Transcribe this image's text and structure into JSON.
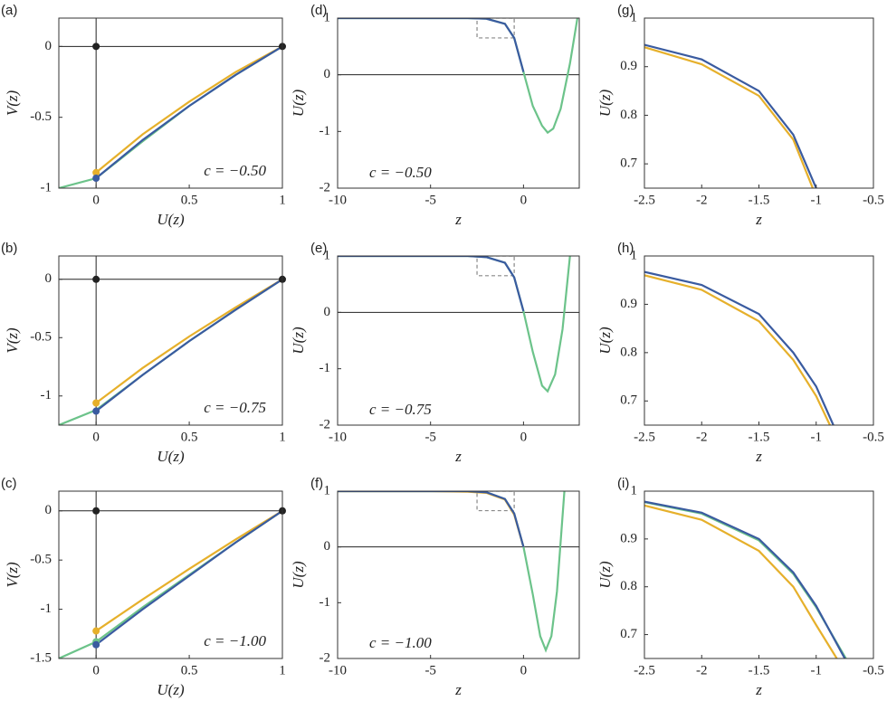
{
  "chart_data": [
    {
      "type": "line",
      "label": "(a)",
      "xlabel": "U(z)",
      "ylabel": "V(z)",
      "annotation": "c = −0.50",
      "xlim": [
        -0.2,
        1
      ],
      "ylim": [
        -1,
        0.2
      ],
      "xticks": [
        0,
        0.5,
        1
      ],
      "yticks": [
        -1,
        -0.5,
        0
      ],
      "zero_lines": [
        "x",
        "y"
      ],
      "series": [
        {
          "color": "#6cc38a",
          "x": [
            -0.2,
            0,
            0.25,
            0.5,
            0.75,
            1
          ],
          "values": [
            -1.0,
            -0.93,
            -0.67,
            -0.42,
            -0.2,
            0
          ]
        },
        {
          "color": "#e6b02b",
          "x": [
            0,
            0.25,
            0.5,
            0.75,
            1
          ],
          "values": [
            -0.89,
            -0.62,
            -0.39,
            -0.18,
            0
          ]
        },
        {
          "color": "#3a5ba0",
          "x": [
            0,
            0.25,
            0.5,
            0.75,
            1
          ],
          "values": [
            -0.93,
            -0.66,
            -0.42,
            -0.2,
            0
          ]
        },
        {
          "color": "#e6b02b",
          "marker": true,
          "x": [
            0
          ],
          "values": [
            -0.89
          ]
        },
        {
          "color": "#3a5ba0",
          "marker": true,
          "x": [
            0
          ],
          "values": [
            -0.93
          ]
        },
        {
          "color": "#222222",
          "marker": true,
          "x": [
            0,
            1
          ],
          "values": [
            0,
            0
          ]
        }
      ]
    },
    {
      "type": "line",
      "label": "(b)",
      "xlabel": "U(z)",
      "ylabel": "V(z)",
      "annotation": "c = −0.75",
      "xlim": [
        -0.2,
        1
      ],
      "ylim": [
        -1.25,
        0.2
      ],
      "xticks": [
        0,
        0.5,
        1
      ],
      "yticks": [
        -1,
        -0.5,
        0
      ],
      "zero_lines": [
        "x",
        "y"
      ],
      "series": [
        {
          "color": "#6cc38a",
          "x": [
            -0.2,
            0,
            0.25,
            0.5,
            0.75,
            1
          ],
          "values": [
            -1.25,
            -1.12,
            -0.82,
            -0.53,
            -0.26,
            0
          ]
        },
        {
          "color": "#e6b02b",
          "x": [
            0,
            0.25,
            0.5,
            0.75,
            1
          ],
          "values": [
            -1.06,
            -0.76,
            -0.49,
            -0.24,
            0
          ]
        },
        {
          "color": "#3a5ba0",
          "x": [
            0,
            0.25,
            0.5,
            0.75,
            1
          ],
          "values": [
            -1.13,
            -0.82,
            -0.53,
            -0.26,
            0
          ]
        },
        {
          "color": "#e6b02b",
          "marker": true,
          "x": [
            0
          ],
          "values": [
            -1.06
          ]
        },
        {
          "color": "#3a5ba0",
          "marker": true,
          "x": [
            0
          ],
          "values": [
            -1.13
          ]
        },
        {
          "color": "#222222",
          "marker": true,
          "x": [
            0,
            1
          ],
          "values": [
            0,
            0
          ]
        }
      ]
    },
    {
      "type": "line",
      "label": "(c)",
      "xlabel": "U(z)",
      "ylabel": "V(z)",
      "annotation": "c = −1.00",
      "xlim": [
        -0.2,
        1
      ],
      "ylim": [
        -1.5,
        0.2
      ],
      "xticks": [
        0,
        0.5,
        1
      ],
      "yticks": [
        -1.5,
        -1,
        -0.5,
        0
      ],
      "zero_lines": [
        "x",
        "y"
      ],
      "series": [
        {
          "color": "#6cc38a",
          "x": [
            -0.2,
            0,
            0.25,
            0.5,
            0.75,
            1
          ],
          "values": [
            -1.5,
            -1.33,
            -0.98,
            -0.65,
            -0.32,
            0
          ]
        },
        {
          "color": "#e6b02b",
          "x": [
            0,
            0.25,
            0.5,
            0.75,
            1
          ],
          "values": [
            -1.22,
            -0.9,
            -0.59,
            -0.29,
            0
          ]
        },
        {
          "color": "#3a5ba0",
          "x": [
            0,
            0.25,
            0.5,
            0.75,
            1
          ],
          "values": [
            -1.36,
            -1.0,
            -0.66,
            -0.32,
            0
          ]
        },
        {
          "color": "#e6b02b",
          "marker": true,
          "x": [
            0
          ],
          "values": [
            -1.22
          ]
        },
        {
          "color": "#6cc38a",
          "marker": true,
          "x": [
            0
          ],
          "values": [
            -1.33
          ]
        },
        {
          "color": "#3a5ba0",
          "marker": true,
          "x": [
            0
          ],
          "values": [
            -1.36
          ]
        },
        {
          "color": "#222222",
          "marker": true,
          "x": [
            0,
            1
          ],
          "values": [
            0,
            0
          ]
        }
      ]
    },
    {
      "type": "line",
      "label": "(d)",
      "xlabel": "z",
      "ylabel": "U(z)",
      "annotation": "c = −0.50",
      "xlim": [
        -10,
        3
      ],
      "ylim": [
        -2,
        1
      ],
      "xticks": [
        -10,
        -5,
        0
      ],
      "yticks": [
        -2,
        -1,
        0,
        1
      ],
      "zero_lines": [
        "y"
      ],
      "zoom_box": {
        "x": [
          -2.5,
          -0.5
        ],
        "y": [
          0.65,
          1
        ]
      },
      "series": [
        {
          "color": "#6cc38a",
          "x": [
            -10,
            -5,
            -3,
            -2,
            -1,
            -0.5,
            0,
            0.5,
            1,
            1.3,
            1.6,
            2,
            2.5,
            2.9
          ],
          "values": [
            1,
            1,
            1,
            0.99,
            0.9,
            0.65,
            0.05,
            -0.55,
            -0.9,
            -1.02,
            -0.95,
            -0.6,
            0.2,
            1
          ]
        },
        {
          "color": "#3a5ba0",
          "x": [
            -10,
            -5,
            -3,
            -2,
            -1,
            -0.5,
            0
          ],
          "values": [
            1,
            1,
            1,
            0.99,
            0.9,
            0.65,
            0.05
          ]
        }
      ]
    },
    {
      "type": "line",
      "label": "(e)",
      "xlabel": "z",
      "ylabel": "U(z)",
      "annotation": "c = −0.75",
      "xlim": [
        -10,
        3
      ],
      "ylim": [
        -2,
        1
      ],
      "xticks": [
        -10,
        -5,
        0
      ],
      "yticks": [
        -2,
        -1,
        0,
        1
      ],
      "zero_lines": [
        "y"
      ],
      "zoom_box": {
        "x": [
          -2.5,
          -0.5
        ],
        "y": [
          0.65,
          1
        ]
      },
      "series": [
        {
          "color": "#6cc38a",
          "x": [
            -10,
            -5,
            -3,
            -2,
            -1,
            -0.5,
            0,
            0.5,
            1,
            1.3,
            1.7,
            2.1,
            2.5
          ],
          "values": [
            1,
            1,
            1,
            0.98,
            0.88,
            0.62,
            0.02,
            -0.7,
            -1.3,
            -1.4,
            -1.1,
            -0.3,
            1
          ]
        },
        {
          "color": "#3a5ba0",
          "x": [
            -10,
            -5,
            -3,
            -2,
            -1,
            -0.5,
            0
          ],
          "values": [
            1,
            1,
            1,
            0.98,
            0.88,
            0.62,
            0.02
          ]
        }
      ]
    },
    {
      "type": "line",
      "label": "(f)",
      "xlabel": "z",
      "ylabel": "U(z)",
      "annotation": "c = −1.00",
      "xlim": [
        -10,
        3
      ],
      "ylim": [
        -2,
        1
      ],
      "xticks": [
        -10,
        -5,
        0
      ],
      "yticks": [
        -2,
        -1,
        0,
        1
      ],
      "zero_lines": [
        "y"
      ],
      "zoom_box": {
        "x": [
          -2.5,
          -0.5
        ],
        "y": [
          0.65,
          1
        ]
      },
      "series": [
        {
          "color": "#6cc38a",
          "x": [
            -10,
            -5,
            -3,
            -2,
            -1,
            -0.5,
            0,
            0.5,
            0.9,
            1.2,
            1.5,
            1.8,
            2.2
          ],
          "values": [
            1,
            1,
            1,
            0.98,
            0.86,
            0.6,
            0,
            -0.85,
            -1.6,
            -1.85,
            -1.6,
            -0.8,
            1
          ]
        },
        {
          "color": "#e6b02b",
          "x": [
            -10,
            -5,
            -3,
            -2,
            -1,
            -0.5,
            0
          ],
          "values": [
            1,
            1,
            0.99,
            0.97,
            0.85,
            0.58,
            0
          ]
        },
        {
          "color": "#3a5ba0",
          "x": [
            -10,
            -5,
            -3,
            -2,
            -1,
            -0.5,
            0
          ],
          "values": [
            1,
            1,
            1,
            0.98,
            0.86,
            0.6,
            0
          ]
        }
      ]
    },
    {
      "type": "line",
      "label": "(g)",
      "xlabel": "z",
      "ylabel": "U(z)",
      "xlim": [
        -2.5,
        -0.5
      ],
      "ylim": [
        0.65,
        1
      ],
      "xticks": [
        -2.5,
        -2,
        -1.5,
        -1,
        -0.5
      ],
      "yticks": [
        0.7,
        0.8,
        0.9,
        1
      ],
      "series": [
        {
          "color": "#e6b02b",
          "x": [
            -2.5,
            -2,
            -1.5,
            -1.2,
            -1.03
          ],
          "values": [
            0.94,
            0.905,
            0.84,
            0.75,
            0.65
          ]
        },
        {
          "color": "#3a5ba0",
          "x": [
            -2.5,
            -2,
            -1.5,
            -1.2,
            -1
          ],
          "values": [
            0.945,
            0.915,
            0.85,
            0.76,
            0.65
          ]
        }
      ]
    },
    {
      "type": "line",
      "label": "(h)",
      "xlabel": "z",
      "ylabel": "U(z)",
      "xlim": [
        -2.5,
        -0.5
      ],
      "ylim": [
        0.65,
        1
      ],
      "xticks": [
        -2.5,
        -2,
        -1.5,
        -1,
        -0.5
      ],
      "yticks": [
        0.7,
        0.8,
        0.9,
        1
      ],
      "series": [
        {
          "color": "#e6b02b",
          "x": [
            -2.5,
            -2,
            -1.5,
            -1.2,
            -1,
            -0.88
          ],
          "values": [
            0.96,
            0.93,
            0.865,
            0.785,
            0.71,
            0.65
          ]
        },
        {
          "color": "#3a5ba0",
          "x": [
            -2.5,
            -2,
            -1.5,
            -1.2,
            -1,
            -0.85
          ],
          "values": [
            0.967,
            0.94,
            0.88,
            0.8,
            0.73,
            0.65
          ]
        }
      ]
    },
    {
      "type": "line",
      "label": "(i)",
      "xlabel": "z",
      "ylabel": "U(z)",
      "xlim": [
        -2.5,
        -0.5
      ],
      "ylim": [
        0.65,
        1
      ],
      "xticks": [
        -2.5,
        -2,
        -1.5,
        -1,
        -0.5
      ],
      "yticks": [
        0.7,
        0.8,
        0.9,
        1
      ],
      "series": [
        {
          "color": "#e6b02b",
          "x": [
            -2.5,
            -2,
            -1.5,
            -1.2,
            -1,
            -0.82
          ],
          "values": [
            0.97,
            0.94,
            0.875,
            0.8,
            0.72,
            0.65
          ]
        },
        {
          "color": "#6cc38a",
          "x": [
            -2.5,
            -2,
            -1.5,
            -1.2,
            -1,
            -0.74
          ],
          "values": [
            0.977,
            0.953,
            0.897,
            0.827,
            0.757,
            0.65
          ]
        },
        {
          "color": "#3a5ba0",
          "x": [
            -2.5,
            -2,
            -1.5,
            -1.2,
            -1,
            -0.75
          ],
          "values": [
            0.978,
            0.955,
            0.9,
            0.83,
            0.76,
            0.65
          ]
        }
      ]
    }
  ]
}
